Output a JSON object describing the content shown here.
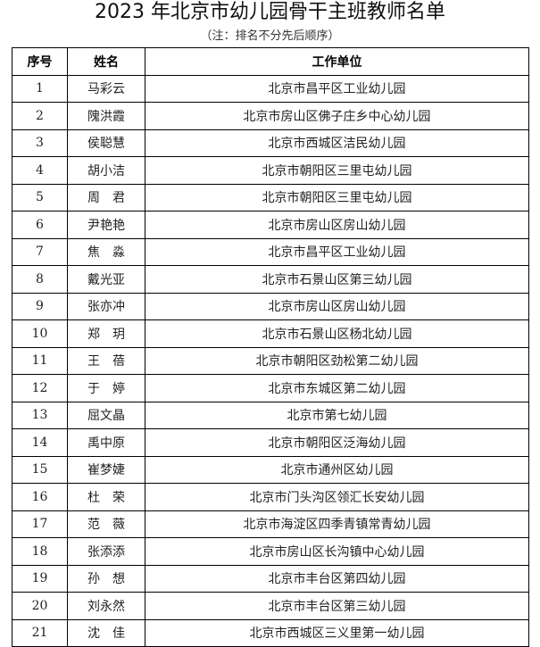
{
  "title": "2023 年北京市幼儿园骨干主班教师名单",
  "note": "（注：排名不分先后顺序）",
  "table": {
    "headers": [
      "序号",
      "姓名",
      "工作单位"
    ],
    "rows": [
      [
        "1",
        "马彩云",
        "北京市昌平区工业幼儿园"
      ],
      [
        "2",
        "隗洪霞",
        "北京市房山区佛子庄乡中心幼儿园"
      ],
      [
        "3",
        "侯聪慧",
        "北京市西城区洁民幼儿园"
      ],
      [
        "4",
        "胡小洁",
        "北京市朝阳区三里屯幼儿园"
      ],
      [
        "5",
        "周　君",
        "北京市朝阳区三里屯幼儿园"
      ],
      [
        "6",
        "尹艳艳",
        "北京市房山区房山幼儿园"
      ],
      [
        "7",
        "焦　淼",
        "北京市昌平区工业幼儿园"
      ],
      [
        "8",
        "戴光亚",
        "北京市石景山区第三幼儿园"
      ],
      [
        "9",
        "张亦冲",
        "北京市房山区房山幼儿园"
      ],
      [
        "10",
        "郑　玥",
        "北京市石景山区杨北幼儿园"
      ],
      [
        "11",
        "王　蓓",
        "北京市朝阳区劲松第二幼儿园"
      ],
      [
        "12",
        "于　婷",
        "北京市东城区第二幼儿园"
      ],
      [
        "13",
        "屈文晶",
        "北京市第七幼儿园"
      ],
      [
        "14",
        "禹中原",
        "北京市朝阳区泛海幼儿园"
      ],
      [
        "15",
        "崔梦婕",
        "北京市通州区幼儿园"
      ],
      [
        "16",
        "杜　荣",
        "北京市门头沟区领汇长安幼儿园"
      ],
      [
        "17",
        "范　薇",
        "北京市海淀区四季青镇常青幼儿园"
      ],
      [
        "18",
        "张添添",
        "北京市房山区长沟镇中心幼儿园"
      ],
      [
        "19",
        "孙　想",
        "北京市丰台区第四幼儿园"
      ],
      [
        "20",
        "刘永然",
        "北京市丰台区第三幼儿园"
      ],
      [
        "21",
        "沈　佳",
        "北京市西城区三义里第一幼儿园"
      ]
    ]
  }
}
